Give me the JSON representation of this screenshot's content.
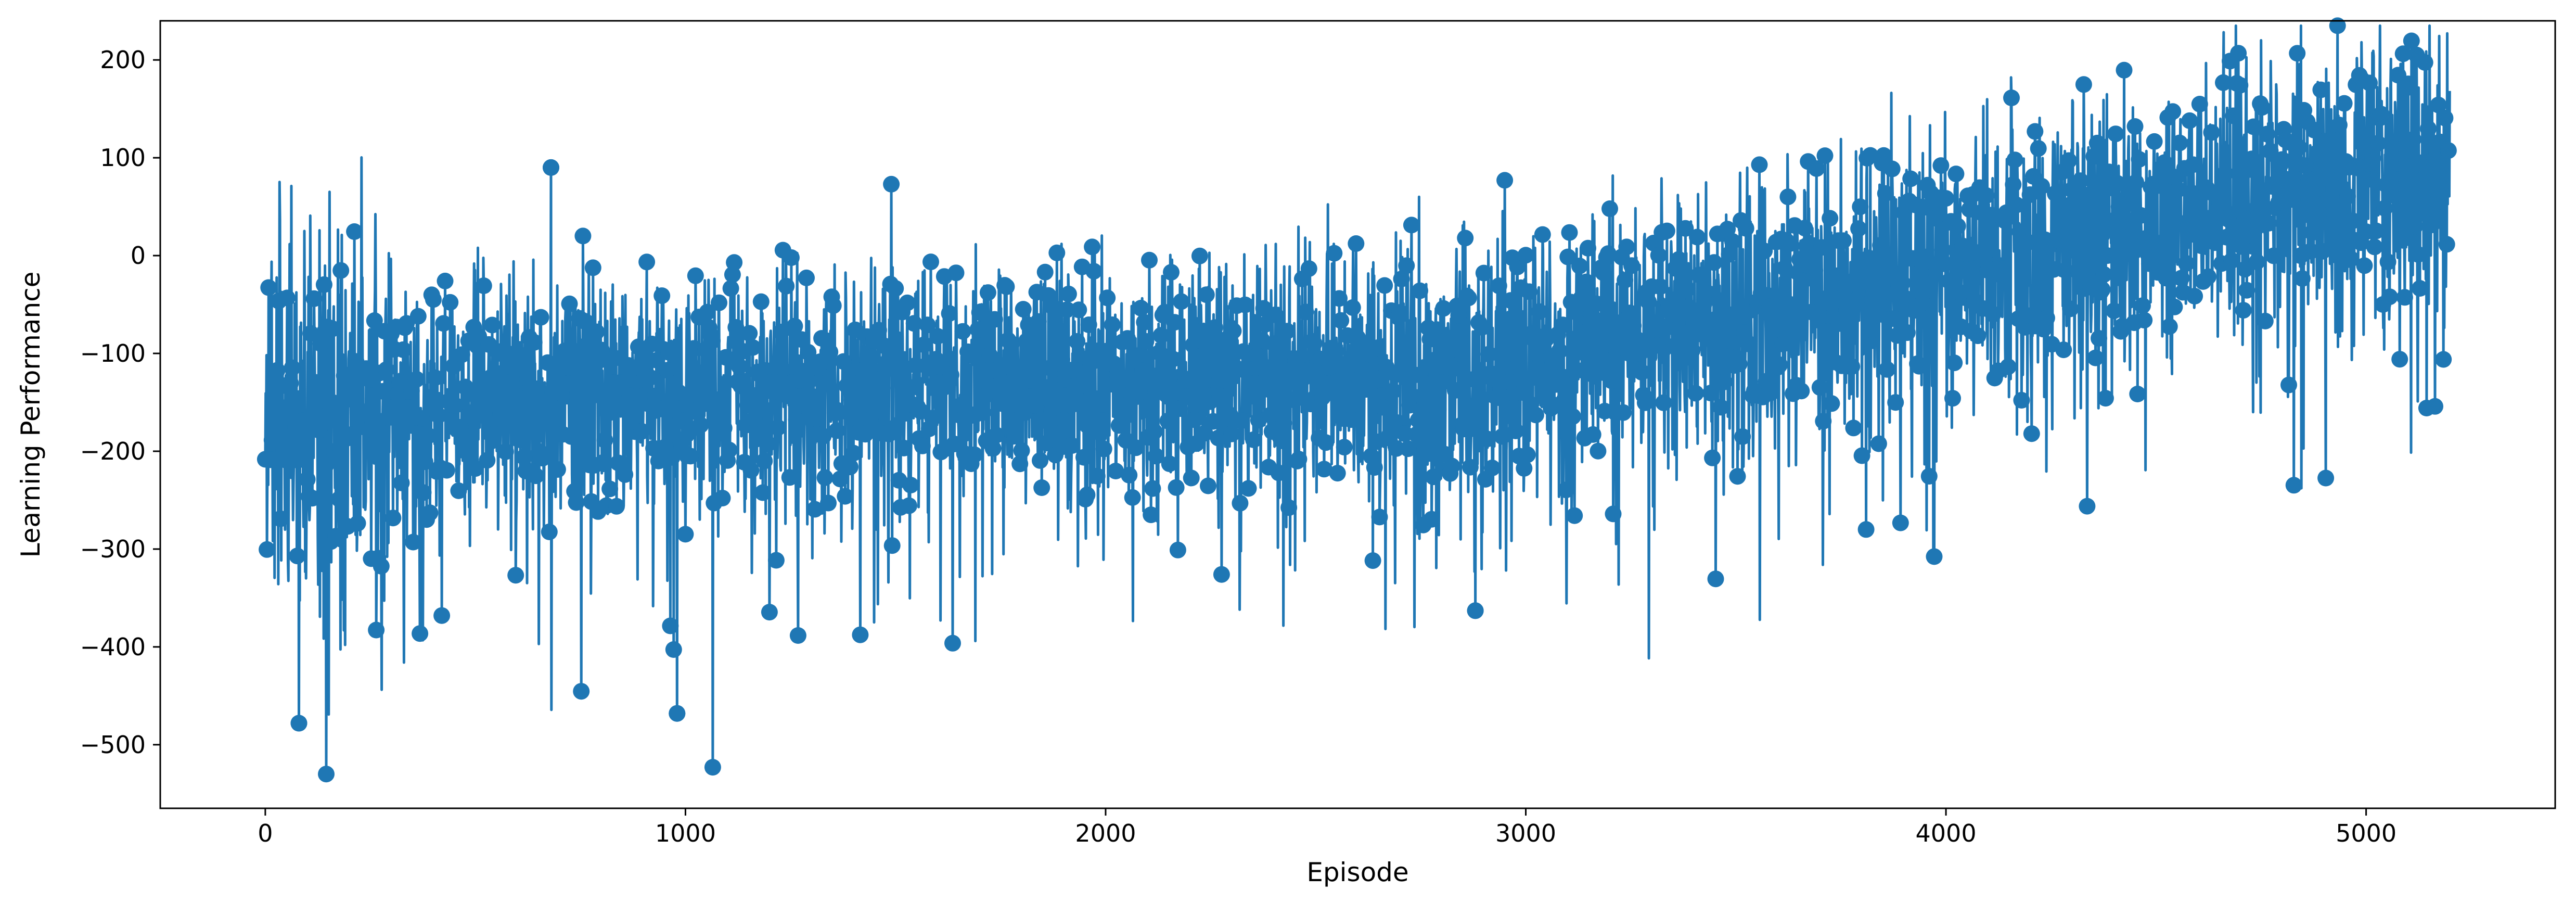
{
  "chart_data": {
    "type": "line",
    "marker": "circle",
    "style": "stem",
    "xlabel": "Episode",
    "ylabel": "Learning Performance",
    "xlim": [
      -250,
      5450
    ],
    "ylim": [
      -565,
      240
    ],
    "x_ticks": [
      0,
      1000,
      2000,
      3000,
      4000,
      5000
    ],
    "x_tick_labels": [
      "0",
      "1000",
      "2000",
      "3000",
      "4000",
      "5000"
    ],
    "y_ticks": [
      200,
      100,
      0,
      -100,
      -200,
      -300,
      -400,
      -500
    ],
    "y_tick_labels": [
      "200",
      "100",
      "0",
      "−100",
      "−200",
      "−300",
      "−400",
      "−500"
    ],
    "grid": false,
    "color": "#1f77b4",
    "series": [
      {
        "x": [
          0,
          150,
          300,
          450,
          600,
          750,
          900,
          1050,
          1200,
          1350,
          1500,
          1650,
          1800,
          1950,
          2100,
          2250,
          2400,
          2550,
          2700,
          2850,
          3000,
          3150,
          3300,
          3450,
          3600,
          3750,
          3900,
          4050,
          4200,
          4350,
          4500,
          4650,
          4800,
          4950,
          5100,
          5190
        ],
        "y": [
          -165,
          -168,
          -163,
          -158,
          -153,
          -149,
          -146,
          -143,
          -140,
          -137,
          -134,
          -132,
          -130,
          -128,
          -127,
          -126,
          -125,
          -123,
          -121,
          -118,
          -110,
          -96,
          -82,
          -66,
          -50,
          -36,
          -24,
          -12,
          2,
          20,
          40,
          58,
          72,
          82,
          90,
          92
        ]
      }
    ],
    "notable_points": [
      {
        "x": 5120,
        "y": 205
      },
      {
        "x": 4990,
        "y": 180
      },
      {
        "x": 4450,
        "y": 132
      },
      {
        "x": 680,
        "y": 90
      },
      {
        "x": 2950,
        "y": 77
      },
      {
        "x": 1490,
        "y": 73
      },
      {
        "x": 145,
        "y": -530
      },
      {
        "x": 1065,
        "y": -523
      },
      {
        "x": 980,
        "y": -468
      },
      {
        "x": 80,
        "y": -478
      },
      {
        "x": 2880,
        "y": -363
      },
      {
        "x": 3810,
        "y": -280
      }
    ]
  }
}
